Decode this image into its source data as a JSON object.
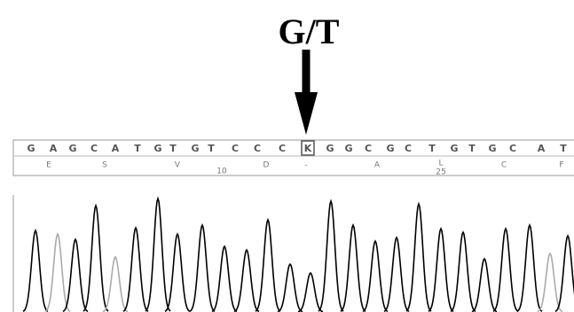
{
  "annotation": {
    "label": "G/T"
  },
  "sequence": {
    "bases": [
      "G",
      "A",
      "G",
      "C",
      "A",
      "T",
      "G",
      "T",
      "G",
      "T",
      "C",
      "C",
      "C",
      "K",
      "G",
      "G",
      "C",
      "G",
      "C",
      "T",
      "G",
      "T",
      "G",
      "C",
      "A",
      "T"
    ],
    "translation": [
      "E",
      "S",
      "V",
      "10",
      "D",
      "-",
      "A",
      "L",
      "25",
      "C",
      "F"
    ]
  }
}
